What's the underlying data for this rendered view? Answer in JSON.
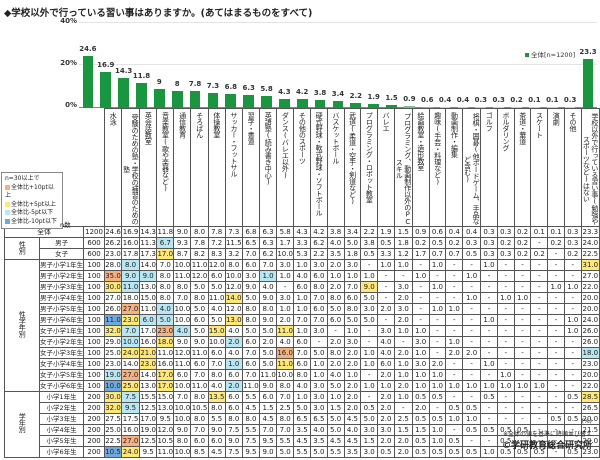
{
  "title": "◆学校以外で行っている習い事はありますか。(あてはまるものをすべて)",
  "legend": {
    "label": "全体[n=1200]",
    "color": "#1a9641"
  },
  "conditions": {
    "title": "n=30以上で",
    "items": [
      {
        "label": "全体比+10pt以上",
        "color": "#f4b183"
      },
      {
        "label": "全体比+5pt以上",
        "color": "#ffe878"
      },
      {
        "label": "全体比-5pt以下",
        "color": "#b8e6f2"
      },
      {
        "label": "全体比-10pt以下",
        "color": "#6fa8dc"
      }
    ]
  },
  "n_label": "n数",
  "pct_label": "(%)",
  "note": "※全体の値を基準に降順並び替え",
  "copyright": "©学研教育総合研究所",
  "chart_data": {
    "type": "bar",
    "title": "◆学校以外で行っている習い事はありますか。(あてはまるものをすべて)",
    "xlabel": "",
    "ylabel": "%",
    "ylim": [
      0,
      40
    ],
    "yticks": [
      "0%",
      "20%",
      "40%"
    ],
    "legend": [
      "全体[n=1200]"
    ],
    "categories": [
      "水泳",
      "受験のための塾・学校の補習のための塾",
      "英会話教室",
      "音楽教室(歌や楽器など)",
      "通信教育",
      "そろばん",
      "体操教室",
      "サッカー・フットサル",
      "習字・書道",
      "英語塾(読み書き中心)",
      "ダンス(バレエ以外)",
      "その他のスポーツ",
      "硬式野球・軟式野球・ソフトボール",
      "バスケットボール",
      "武道(柔道・空手・剣道など)",
      "プログラミング・ロボット教室",
      "バレエ",
      "プログラミング、動画制作以外のPCスキル",
      "絵画教室・造形教室",
      "趣味(手芸・料理など)",
      "動画制作・編集",
      "将棋・囲碁(他ボードゲーム、手品など含む)",
      "ゴルフ",
      "ボルダリング",
      "茶道・華道",
      "スケート",
      "演劇",
      "その他",
      "学校以外で行っている習い事(勉強やスポーツなど)はない"
    ],
    "values": [
      24.6,
      16.9,
      14.3,
      11.8,
      9.0,
      8.0,
      7.8,
      7.3,
      6.8,
      6.3,
      5.8,
      4.3,
      4.2,
      3.8,
      3.4,
      2.2,
      1.9,
      1.5,
      0.9,
      0.6,
      0.4,
      0.4,
      0.3,
      0.3,
      0.2,
      0.1,
      0.1,
      0.3,
      23.3
    ],
    "bar_colors": [
      "#1a9641",
      "#1a9641",
      "#1a9641",
      "#1a9641",
      "#1a9641",
      "#1a9641",
      "#1a9641",
      "#1a9641",
      "#1a9641",
      "#1a9641",
      "#1a9641",
      "#1a9641",
      "#1a9641",
      "#1a9641",
      "#1a9641",
      "#1a9641",
      "#1a9641",
      "#1a9641",
      "#7fbf8f",
      "#7fbf8f",
      "#b7d9bf",
      "#b7d9bf",
      "#b7d9bf",
      "#b7d9bf",
      "#b7d9bf",
      "#b7d9bf",
      "#b7d9bf",
      "#b7d9bf",
      "#1a9641"
    ]
  },
  "table": {
    "rows": [
      {
        "group": "",
        "label": "全体",
        "n": "1200",
        "values": [
          "24.6",
          "16.9",
          "14.3",
          "11.8",
          "9.0",
          "8.0",
          "7.8",
          "7.3",
          "6.8",
          "6.3",
          "5.8",
          "4.3",
          "4.2",
          "3.8",
          "3.4",
          "2.2",
          "1.9",
          "1.5",
          "0.9",
          "0.6",
          "0.4",
          "0.4",
          "0.3",
          "0.3",
          "0.2",
          "0.1",
          "0.1",
          "0.3",
          "23.3"
        ],
        "hl": {}
      },
      {
        "group": "性別",
        "label": "男子",
        "n": "600",
        "values": [
          "26.2",
          "16.0",
          "11.3",
          "6.7",
          "9.3",
          "7.8",
          "7.2",
          "11.5",
          "6.5",
          "6.3",
          "1.7",
          "3.3",
          "6.2",
          "4.0",
          "5.0",
          "3.8",
          "0.5",
          "1.8",
          "0.2",
          "0.5",
          "0.2",
          "0.3",
          "0.3",
          "0.2",
          "0.2",
          "-",
          "0.2",
          "0.3",
          "24.0"
        ],
        "hl": {
          "3": "c"
        }
      },
      {
        "group": "性別",
        "label": "女子",
        "n": "600",
        "values": [
          "23.0",
          "17.8",
          "17.3",
          "17.0",
          "8.7",
          "8.2",
          "8.3",
          "3.2",
          "7.0",
          "6.2",
          "10.0",
          "5.3",
          "2.2",
          "3.5",
          "1.8",
          "0.5",
          "3.3",
          "1.2",
          "1.7",
          "0.7",
          "0.7",
          "0.5",
          "0.3",
          "0.3",
          "0.2",
          "0.2",
          "-",
          "0.2",
          "22.5"
        ],
        "hl": {
          "3": "y"
        }
      },
      {
        "group": "性学年別",
        "label": "男子小学1年生",
        "n": "100",
        "values": [
          "28.0",
          "8.0",
          "14.0",
          "7.0",
          "10.0",
          "11.0",
          "12.0",
          "8.0",
          "6.0",
          "7.0",
          "3.0",
          "1.0",
          "3.0",
          "2.0",
          "3.0",
          "-",
          "1.0",
          "1.0",
          "-",
          "1.0",
          "-",
          "-",
          "1.0",
          "-",
          "-",
          "-",
          "-",
          "-",
          "31.0"
        ],
        "hl": {
          "1": "c",
          "28": "y"
        }
      },
      {
        "group": "性学年別",
        "label": "男子小学2年生",
        "n": "100",
        "values": [
          "35.0",
          "9.0",
          "9.0",
          "8.0",
          "11.0",
          "12.0",
          "6.0",
          "10.0",
          "3.0",
          "1.0",
          "1.0",
          "4.0",
          "6.0",
          "1.0",
          "1.0",
          "1.0",
          "-",
          "-",
          "1.0",
          "-",
          "-",
          "1.0",
          "-",
          "-",
          "-",
          "-",
          "-",
          "-",
          "27.0"
        ],
        "hl": {
          "0": "o",
          "1": "c",
          "2": "c",
          "9": "c"
        }
      },
      {
        "group": "性学年別",
        "label": "男子小学3年生",
        "n": "100",
        "values": [
          "30.0",
          "11.0",
          "13.0",
          "8.0",
          "8.0",
          "5.0",
          "5.0",
          "12.0",
          "9.0",
          "4.0",
          "-",
          "6.0",
          "8.0",
          "2.0",
          "7.0",
          "9.0",
          "-",
          "3.0",
          "-",
          "1.0",
          "-",
          "-",
          "-",
          "-",
          "-",
          "-",
          "1.0",
          "1.0",
          "22.0"
        ],
        "hl": {
          "0": "y",
          "1": "c",
          "15": "y"
        }
      },
      {
        "group": "性学年別",
        "label": "男子小学4年生",
        "n": "100",
        "values": [
          "27.0",
          "18.0",
          "15.0",
          "8.0",
          "7.0",
          "8.0",
          "11.0",
          "14.0",
          "5.0",
          "9.0",
          "3.0",
          "1.0",
          "7.0",
          "8.0",
          "6.0",
          "5.0",
          "-",
          "2.0",
          "-",
          "-",
          "-",
          "1.0",
          "-",
          "1.0",
          "1.0",
          "-",
          "-",
          "-",
          "20.0"
        ],
        "hl": {
          "7": "y"
        }
      },
      {
        "group": "性学年別",
        "label": "男子小学5年生",
        "n": "100",
        "values": [
          "26.0",
          "27.0",
          "11.0",
          "4.0",
          "10.0",
          "5.0",
          "4.0",
          "12.0",
          "8.0",
          "8.0",
          "1.0",
          "1.0",
          "6.0",
          "5.0",
          "8.0",
          "3.0",
          "2.0",
          "3.0",
          "-",
          "1.0",
          "1.0",
          "-",
          "-",
          "-",
          "-",
          "-",
          "-",
          "-",
          "20.0"
        ],
        "hl": {
          "1": "o",
          "3": "c"
        }
      },
      {
        "group": "性学年別",
        "label": "男子小学6年生",
        "n": "100",
        "values": [
          "11.0",
          "23.0",
          "6.0",
          "5.0",
          "10.0",
          "6.0",
          "5.0",
          "13.0",
          "8.0",
          "9.0",
          "2.0",
          "7.0",
          "7.0",
          "6.0",
          "5.0",
          "5.0",
          "-",
          "2.0",
          "-",
          "-",
          "-",
          "-",
          "1.0",
          "-",
          "-",
          "-",
          "-",
          "1.0",
          "24.0"
        ],
        "hl": {
          "0": "b",
          "1": "y",
          "2": "c",
          "3": "c",
          "7": "y"
        }
      },
      {
        "group": "性学年別",
        "label": "女子小学1年生",
        "n": "100",
        "values": [
          "32.0",
          "7.0",
          "17.0",
          "23.0",
          "4.0",
          "5.0",
          "15.0",
          "4.0",
          "5.0",
          "5.0",
          "11.0",
          "1.0",
          "3.0",
          "-",
          "1.0",
          "-",
          "3.0",
          "1.0",
          "1.0",
          "-",
          "-",
          "-",
          "-",
          "-",
          "-",
          "-",
          "-",
          "1.0",
          "26.0"
        ],
        "hl": {
          "0": "y",
          "1": "c",
          "3": "o",
          "4": "c",
          "6": "y",
          "10": "y"
        }
      },
      {
        "group": "性学年別",
        "label": "女子小学2年生",
        "n": "100",
        "values": [
          "29.0",
          "10.0",
          "16.0",
          "18.0",
          "9.0",
          "9.0",
          "10.0",
          "2.0",
          "6.0",
          "2.0",
          "4.0",
          "6.0",
          "-",
          "2.0",
          "3.0",
          "-",
          "4.0",
          "-",
          "3.0",
          "-",
          "1.0",
          "-",
          "-",
          "-",
          "-",
          "-",
          "-",
          "-",
          "26.0"
        ],
        "hl": {
          "1": "c",
          "3": "y",
          "7": "c"
        }
      },
      {
        "group": "性学年別",
        "label": "女子小学3年生",
        "n": "100",
        "values": [
          "25.0",
          "24.0",
          "21.0",
          "11.0",
          "12.0",
          "11.0",
          "6.0",
          "4.0",
          "7.0",
          "5.0",
          "16.0",
          "7.0",
          "5.0",
          "8.0",
          "2.0",
          "1.0",
          "4.0",
          "2.0",
          "1.0",
          "-",
          "2.0",
          "2.0",
          "-",
          "-",
          "-",
          "-",
          "-",
          "-",
          "18.0"
        ],
        "hl": {
          "1": "y",
          "2": "y",
          "10": "o",
          "28": "c"
        }
      },
      {
        "group": "性学年別",
        "label": "女子小学4年生",
        "n": "100",
        "values": [
          "23.0",
          "14.0",
          "23.0",
          "16.0",
          "11.0",
          "6.0",
          "7.0",
          "1.0",
          "6.0",
          "5.0",
          "11.0",
          "6.0",
          "1.0",
          "2.0",
          "2.0",
          "1.0",
          "6.0",
          "1.0",
          "3.0",
          "2.0",
          "-",
          "-",
          "1.0",
          "-",
          "-",
          "-",
          "-",
          "-",
          "23.0"
        ],
        "hl": {
          "2": "y",
          "7": "c",
          "10": "y"
        }
      },
      {
        "group": "性学年別",
        "label": "女子小学5年生",
        "n": "100",
        "values": [
          "19.0",
          "27.0",
          "14.0",
          "17.0",
          "6.0",
          "7.0",
          "8.0",
          "6.0",
          "7.0",
          "11.0",
          "10.0",
          "8.0",
          "1.0",
          "4.0",
          "1.0",
          "-",
          "2.0",
          "1.0",
          "1.0",
          "1.0",
          "-",
          "-",
          "-",
          "1.0",
          "-",
          "-",
          "-",
          "-",
          "20.0"
        ],
        "hl": {
          "0": "c",
          "1": "o",
          "3": "y"
        }
      },
      {
        "group": "性学年別",
        "label": "女子小学6年生",
        "n": "100",
        "values": [
          "10.0",
          "25.0",
          "13.0",
          "17.0",
          "10.0",
          "11.0",
          "4.0",
          "2.0",
          "11.0",
          "9.0",
          "8.0",
          "4.0",
          "3.0",
          "5.0",
          "2.0",
          "1.0",
          "1.0",
          "2.0",
          "1.0",
          "1.0",
          "1.0",
          "1.0",
          "1.0",
          "1.0",
          "1.0",
          "1.0",
          "-",
          "-",
          "22.0"
        ],
        "hl": {
          "0": "b",
          "1": "y",
          "3": "y",
          "7": "c"
        }
      },
      {
        "group": "学年別",
        "label": "小学1年生",
        "n": "200",
        "values": [
          "30.0",
          "7.5",
          "15.5",
          "15.0",
          "7.0",
          "8.0",
          "13.5",
          "6.0",
          "5.5",
          "6.0",
          "7.0",
          "1.0",
          "3.0",
          "1.0",
          "2.0",
          "-",
          "2.0",
          "1.0",
          "0.5",
          "0.5",
          "-",
          "-",
          "0.5",
          "-",
          "-",
          "-",
          "-",
          "0.5",
          "28.5"
        ],
        "hl": {
          "0": "y",
          "1": "c",
          "6": "y",
          "28": "y"
        }
      },
      {
        "group": "学年別",
        "label": "小学2年生",
        "n": "200",
        "values": [
          "32.0",
          "9.5",
          "12.5",
          "13.0",
          "10.0",
          "10.5",
          "8.0",
          "6.0",
          "4.5",
          "1.5",
          "2.5",
          "5.0",
          "3.0",
          "1.5",
          "2.0",
          "0.5",
          "2.0",
          "-",
          "2.0",
          "-",
          "0.5",
          "0.5",
          "-",
          "-",
          "-",
          "-",
          "-",
          "-",
          "26.5"
        ],
        "hl": {
          "0": "y",
          "1": "c"
        }
      },
      {
        "group": "学年別",
        "label": "小学3年生",
        "n": "200",
        "values": [
          "27.5",
          "17.5",
          "17.0",
          "9.5",
          "10.0",
          "8.0",
          "5.5",
          "8.0",
          "8.0",
          "4.5",
          "8.0",
          "6.5",
          "6.5",
          "5.0",
          "4.5",
          "5.0",
          "2.0",
          "2.5",
          "0.5",
          "0.5",
          "1.0",
          "1.0",
          "-",
          "-",
          "-",
          "-",
          "0.5",
          "0.5",
          "20.0"
        ],
        "hl": {}
      },
      {
        "group": "学年別",
        "label": "小学4年生",
        "n": "200",
        "values": [
          "25.0",
          "16.0",
          "19.0",
          "12.0",
          "9.0",
          "7.0",
          "9.0",
          "7.5",
          "5.5",
          "7.0",
          "7.0",
          "3.5",
          "4.0",
          "5.0",
          "4.0",
          "3.0",
          "3.0",
          "1.5",
          "1.5",
          "1.0",
          "-",
          "0.5",
          "0.5",
          "0.5",
          "0.5",
          "-",
          "-",
          "-",
          "21.5"
        ],
        "hl": {}
      },
      {
        "group": "学年別",
        "label": "小学5年生",
        "n": "200",
        "values": [
          "22.5",
          "27.0",
          "12.5",
          "10.5",
          "8.0",
          "6.0",
          "6.0",
          "9.0",
          "7.5",
          "9.5",
          "5.5",
          "4.5",
          "3.5",
          "4.5",
          "4.5",
          "1.5",
          "2.0",
          "2.0",
          "0.5",
          "1.0",
          "0.5",
          "-",
          "-",
          "0.5",
          "-",
          "-",
          "-",
          "-",
          "20.0"
        ],
        "hl": {
          "1": "o"
        }
      },
      {
        "group": "学年別",
        "label": "小学6年生",
        "n": "200",
        "values": [
          "10.5",
          "24.0",
          "9.5",
          "11.0",
          "10.0",
          "8.5",
          "4.5",
          "7.5",
          "9.5",
          "9.0",
          "5.0",
          "5.5",
          "5.0",
          "5.5",
          "3.5",
          "3.0",
          "0.5",
          "2.0",
          "0.5",
          "0.5",
          "0.5",
          "0.5",
          "1.0",
          "0.5",
          "0.5",
          "0.5",
          "-",
          "0.5",
          "23.0"
        ],
        "hl": {
          "0": "b",
          "1": "y"
        }
      }
    ]
  }
}
